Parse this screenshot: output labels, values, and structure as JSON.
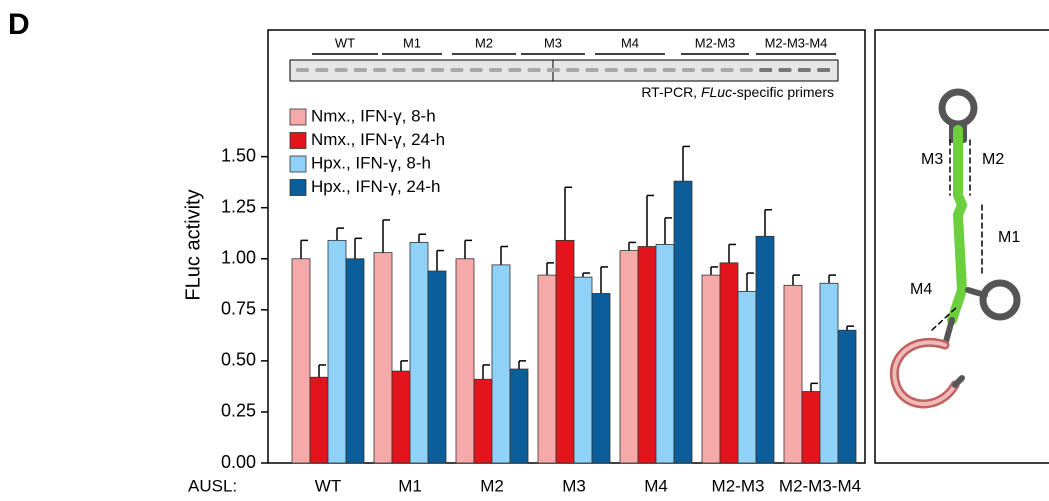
{
  "panel_letter": "D",
  "chart_data": {
    "type": "bar",
    "y_label": "FLuc activity",
    "x_prefix": "AUSL:",
    "categories": [
      "WT",
      "M1",
      "M2",
      "M3",
      "M4",
      "M2-M3",
      "M2-M3-M4"
    ],
    "series": [
      {
        "name": "Nmx., IFN-γ, 8-h",
        "color": "#f5a9a9",
        "values": [
          1.0,
          1.03,
          1.0,
          0.92,
          1.04,
          0.92,
          0.87
        ],
        "errors": [
          0.09,
          0.16,
          0.09,
          0.06,
          0.04,
          0.04,
          0.05
        ]
      },
      {
        "name": "Nmx., IFN-γ, 24-h",
        "color": "#e3141b",
        "values": [
          0.42,
          0.45,
          0.41,
          1.09,
          1.06,
          0.98,
          0.35
        ],
        "errors": [
          0.06,
          0.05,
          0.07,
          0.26,
          0.25,
          0.09,
          0.04
        ]
      },
      {
        "name": "Hpx., IFN-γ, 8-h",
        "color": "#8fd1f7",
        "values": [
          1.09,
          1.08,
          0.97,
          0.91,
          1.07,
          0.84,
          0.88
        ],
        "errors": [
          0.06,
          0.04,
          0.09,
          0.02,
          0.13,
          0.09,
          0.04
        ]
      },
      {
        "name": "Hpx., IFN-γ, 24-h",
        "color": "#0b5e99",
        "values": [
          1.0,
          0.94,
          0.46,
          0.83,
          1.38,
          1.11,
          0.65
        ],
        "errors": [
          0.1,
          0.1,
          0.04,
          0.13,
          0.17,
          0.13,
          0.02
        ]
      }
    ],
    "ylim": [
      0,
      2.12
    ],
    "yticks": [
      {
        "value": 0,
        "label": "0.00"
      },
      {
        "value": 0.25,
        "label": "0.25"
      },
      {
        "value": 0.5,
        "label": "0.50"
      },
      {
        "value": 0.75,
        "label": "0.75"
      },
      {
        "value": 1,
        "label": "1.00"
      },
      {
        "value": 1.25,
        "label": "1.25"
      },
      {
        "value": 1.5,
        "label": "1.50"
      }
    ],
    "legend": "upper left"
  },
  "gel": {
    "caption_parts": [
      "RT-PCR, ",
      "FLuc",
      "-specific primers"
    ]
  },
  "diagram": {
    "labels": [
      "M3",
      "M2",
      "M1",
      "M4"
    ]
  }
}
